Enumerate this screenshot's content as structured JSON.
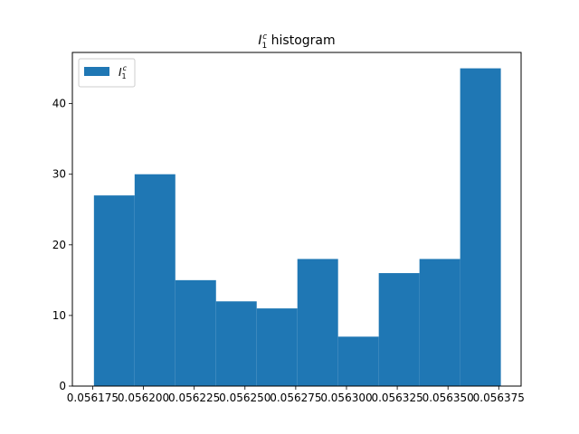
{
  "chart_data": {
    "type": "bar",
    "title_main": "I",
    "title_sub": "1",
    "title_sup": "c",
    "title_rest": " histogram",
    "legend": {
      "main": "I",
      "sub": "1",
      "sup": "c",
      "placement": "top-left"
    },
    "bar_color": "#1f77b4",
    "bin_edges": [
      0.05617562,
      0.05619566,
      0.0562157,
      0.05623574,
      0.05625578,
      0.05627582,
      0.05629586,
      0.0563159,
      0.05633594,
      0.05635598,
      0.05637602
    ],
    "counts": [
      27,
      30,
      15,
      12,
      11,
      18,
      7,
      16,
      18,
      45
    ],
    "x_ticks": [
      "0.056175",
      "0.056200",
      "0.056225",
      "0.056250",
      "0.056275",
      "0.056300",
      "0.056325",
      "0.056350",
      "0.056375"
    ],
    "x_tick_values": [
      0.056175,
      0.0562,
      0.056225,
      0.05625,
      0.056275,
      0.0563,
      0.056325,
      0.05635,
      0.056375
    ],
    "y_ticks": [
      0,
      10,
      20,
      30,
      40
    ],
    "xlim": [
      0.056165,
      0.056386
    ],
    "ylim": [
      0,
      47.25
    ],
    "grid": false
  }
}
